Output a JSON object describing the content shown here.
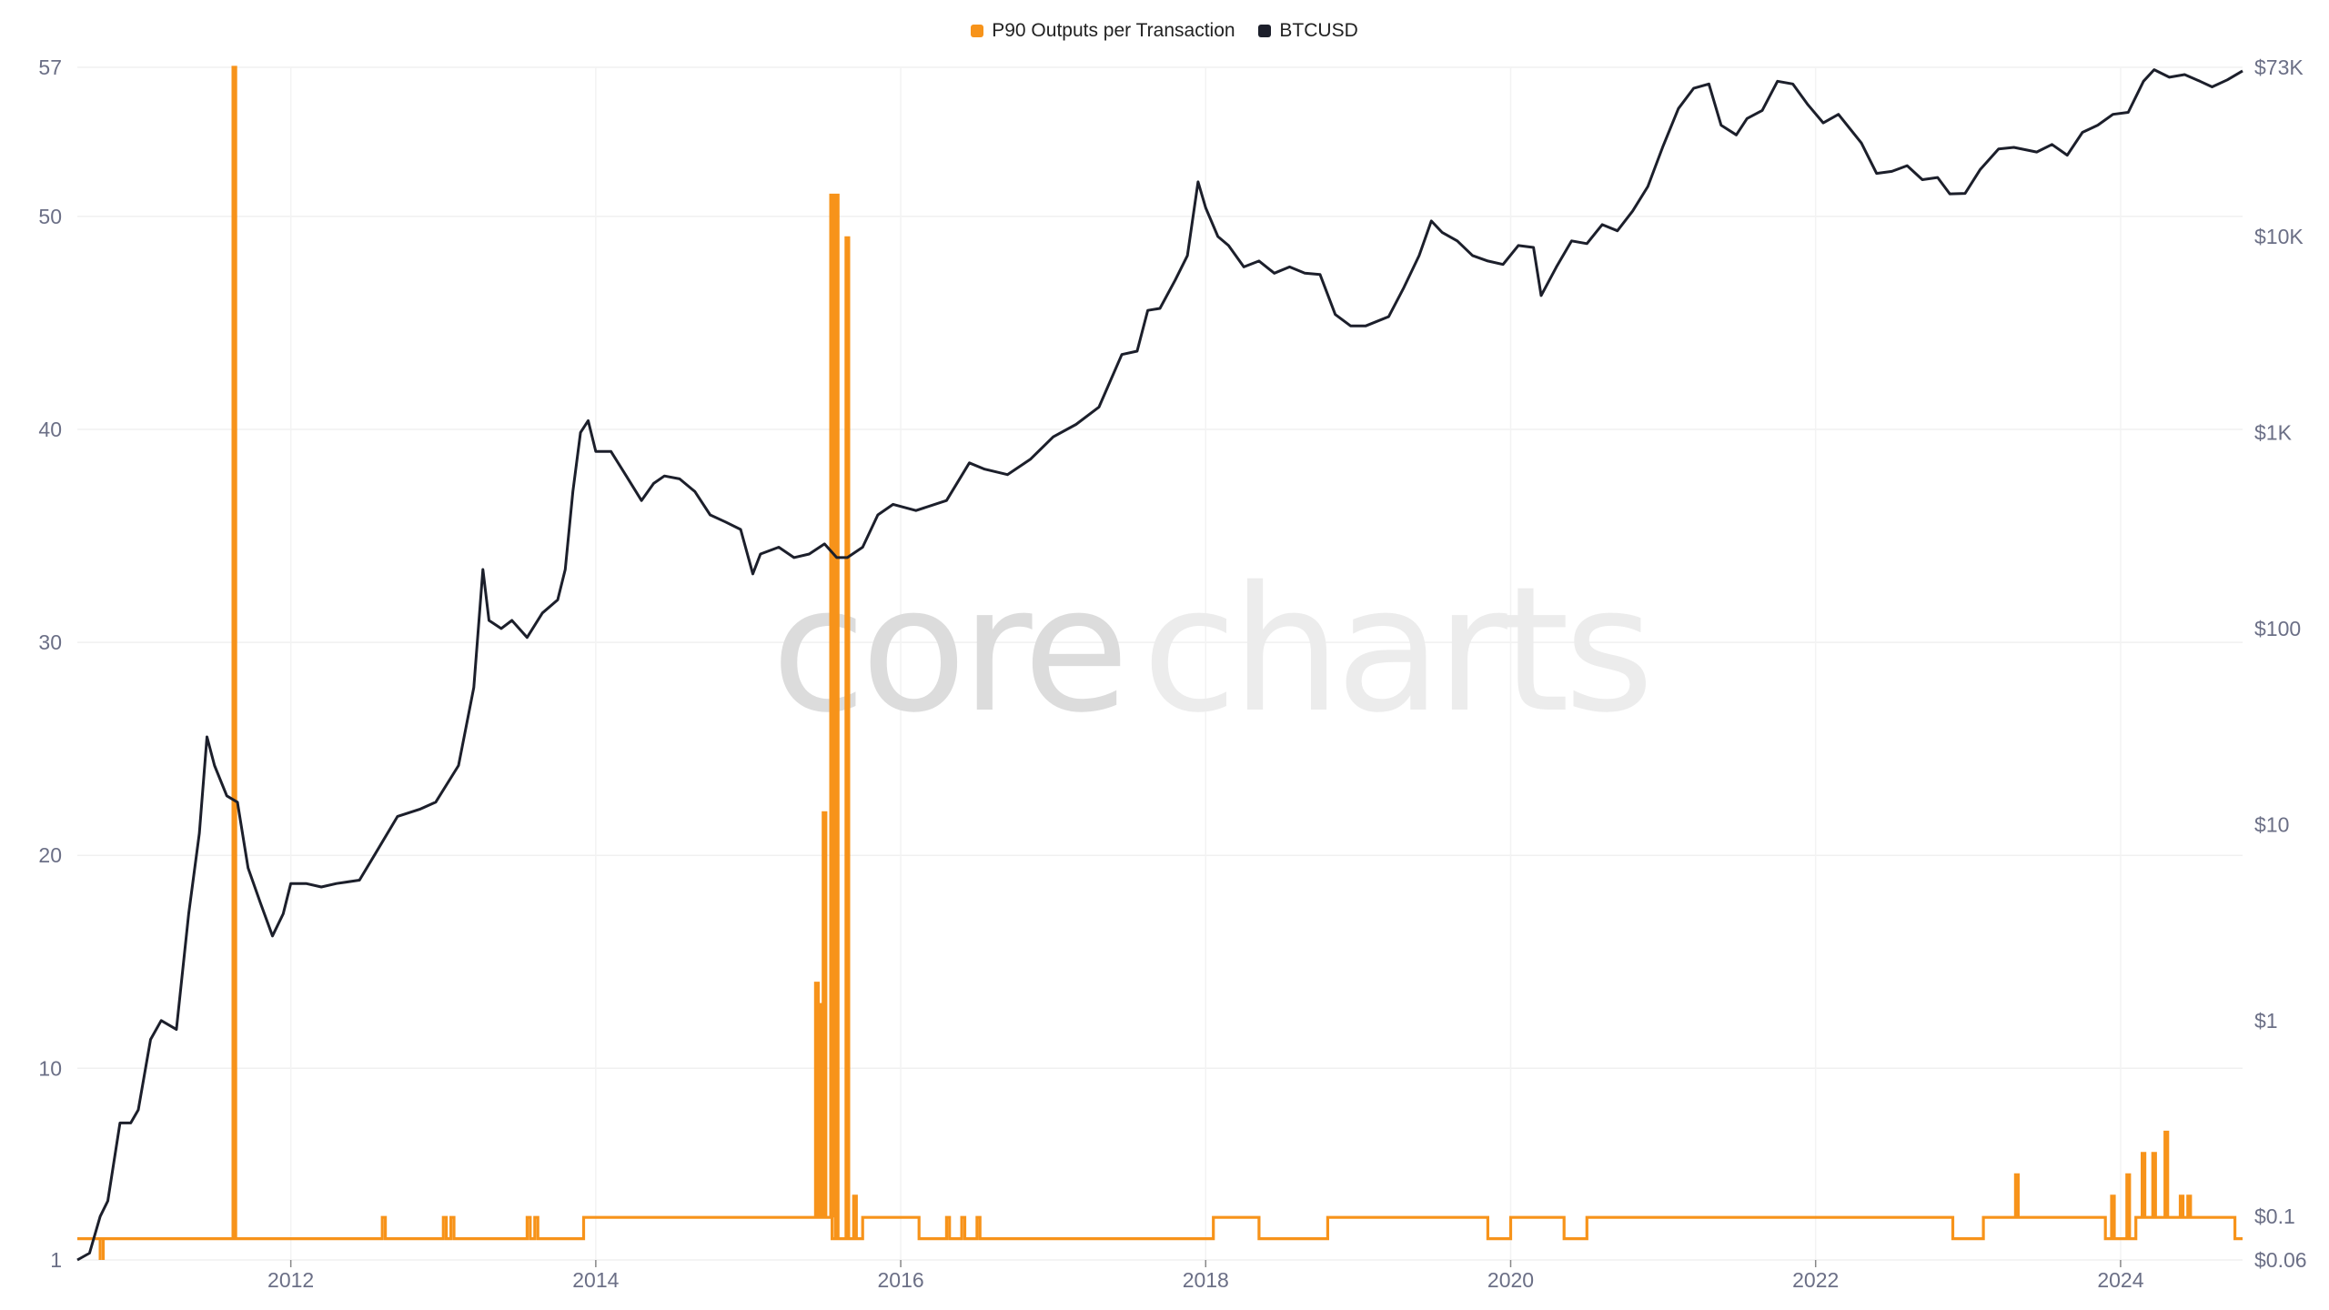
{
  "legend": [
    {
      "label": "P90 Outputs per Transaction",
      "color": "#f7931a"
    },
    {
      "label": "BTCUSD",
      "color": "#1c1f2b"
    }
  ],
  "watermark": {
    "part1": "core",
    "part2": "charts"
  },
  "chart_data": {
    "type": "line",
    "x_range": [
      2010.6,
      2024.8
    ],
    "left_axis": {
      "ticks": [
        1,
        10,
        20,
        30,
        40,
        50,
        57
      ],
      "range": [
        1,
        57
      ]
    },
    "right_axis": {
      "scale": "log",
      "ticks": [
        {
          "label": "$0.06",
          "value": 0.06
        },
        {
          "label": "$0.1",
          "value": 0.1
        },
        {
          "label": "$1",
          "value": 1
        },
        {
          "label": "$10",
          "value": 10
        },
        {
          "label": "$100",
          "value": 100
        },
        {
          "label": "$1K",
          "value": 1000
        },
        {
          "label": "$10K",
          "value": 10000
        },
        {
          "label": "$73K",
          "value": 73000
        }
      ],
      "range": [
        0.06,
        73000
      ]
    },
    "x_ticks": [
      "2012",
      "2014",
      "2016",
      "2018",
      "2020",
      "2022",
      "2024"
    ],
    "series": [
      {
        "name": "BTCUSD",
        "color": "#1c1f2b",
        "axis": "right",
        "points": [
          [
            2010.6,
            0.06
          ],
          [
            2010.68,
            0.065
          ],
          [
            2010.75,
            0.1
          ],
          [
            2010.8,
            0.12
          ],
          [
            2010.88,
            0.3
          ],
          [
            2010.95,
            0.3
          ],
          [
            2011.0,
            0.35
          ],
          [
            2011.08,
            0.8
          ],
          [
            2011.15,
            1.0
          ],
          [
            2011.25,
            0.9
          ],
          [
            2011.33,
            3.5
          ],
          [
            2011.4,
            9
          ],
          [
            2011.45,
            28
          ],
          [
            2011.5,
            20
          ],
          [
            2011.58,
            14
          ],
          [
            2011.65,
            13
          ],
          [
            2011.72,
            6
          ],
          [
            2011.8,
            4
          ],
          [
            2011.88,
            2.7
          ],
          [
            2011.95,
            3.5
          ],
          [
            2012.0,
            5
          ],
          [
            2012.1,
            5
          ],
          [
            2012.2,
            4.8
          ],
          [
            2012.3,
            5
          ],
          [
            2012.45,
            5.2
          ],
          [
            2012.55,
            7
          ],
          [
            2012.7,
            11
          ],
          [
            2012.85,
            12
          ],
          [
            2012.95,
            13
          ],
          [
            2013.1,
            20
          ],
          [
            2013.2,
            50
          ],
          [
            2013.26,
            200
          ],
          [
            2013.3,
            110
          ],
          [
            2013.38,
            100
          ],
          [
            2013.45,
            110
          ],
          [
            2013.55,
            90
          ],
          [
            2013.65,
            120
          ],
          [
            2013.75,
            140
          ],
          [
            2013.8,
            200
          ],
          [
            2013.85,
            500
          ],
          [
            2013.9,
            1000
          ],
          [
            2013.95,
            1150
          ],
          [
            2014.0,
            800
          ],
          [
            2014.1,
            800
          ],
          [
            2014.2,
            600
          ],
          [
            2014.3,
            450
          ],
          [
            2014.38,
            550
          ],
          [
            2014.45,
            600
          ],
          [
            2014.55,
            580
          ],
          [
            2014.65,
            500
          ],
          [
            2014.75,
            380
          ],
          [
            2014.85,
            350
          ],
          [
            2014.95,
            320
          ],
          [
            2015.03,
            190
          ],
          [
            2015.08,
            240
          ],
          [
            2015.2,
            260
          ],
          [
            2015.3,
            230
          ],
          [
            2015.4,
            240
          ],
          [
            2015.5,
            270
          ],
          [
            2015.58,
            230
          ],
          [
            2015.65,
            230
          ],
          [
            2015.75,
            260
          ],
          [
            2015.85,
            380
          ],
          [
            2015.95,
            430
          ],
          [
            2016.1,
            400
          ],
          [
            2016.3,
            450
          ],
          [
            2016.45,
            700
          ],
          [
            2016.55,
            650
          ],
          [
            2016.7,
            610
          ],
          [
            2016.85,
            730
          ],
          [
            2017.0,
            950
          ],
          [
            2017.15,
            1100
          ],
          [
            2017.3,
            1350
          ],
          [
            2017.45,
            2500
          ],
          [
            2017.55,
            2600
          ],
          [
            2017.62,
            4200
          ],
          [
            2017.7,
            4300
          ],
          [
            2017.8,
            6000
          ],
          [
            2017.88,
            8000
          ],
          [
            2017.95,
            19000
          ],
          [
            2018.0,
            14000
          ],
          [
            2018.08,
            10000
          ],
          [
            2018.15,
            9000
          ],
          [
            2018.25,
            7000
          ],
          [
            2018.35,
            7500
          ],
          [
            2018.45,
            6500
          ],
          [
            2018.55,
            7000
          ],
          [
            2018.65,
            6500
          ],
          [
            2018.75,
            6400
          ],
          [
            2018.85,
            4000
          ],
          [
            2018.95,
            3500
          ],
          [
            2019.05,
            3500
          ],
          [
            2019.2,
            3900
          ],
          [
            2019.3,
            5500
          ],
          [
            2019.4,
            8000
          ],
          [
            2019.48,
            12000
          ],
          [
            2019.55,
            10500
          ],
          [
            2019.65,
            9500
          ],
          [
            2019.75,
            8000
          ],
          [
            2019.85,
            7500
          ],
          [
            2019.95,
            7200
          ],
          [
            2020.05,
            9000
          ],
          [
            2020.15,
            8800
          ],
          [
            2020.2,
            5000
          ],
          [
            2020.3,
            7000
          ],
          [
            2020.4,
            9500
          ],
          [
            2020.5,
            9200
          ],
          [
            2020.6,
            11500
          ],
          [
            2020.7,
            10700
          ],
          [
            2020.8,
            13500
          ],
          [
            2020.9,
            18000
          ],
          [
            2021.0,
            29000
          ],
          [
            2021.1,
            45000
          ],
          [
            2021.2,
            57000
          ],
          [
            2021.3,
            60000
          ],
          [
            2021.38,
            37000
          ],
          [
            2021.48,
            33000
          ],
          [
            2021.55,
            40000
          ],
          [
            2021.65,
            44000
          ],
          [
            2021.75,
            62000
          ],
          [
            2021.85,
            60000
          ],
          [
            2021.95,
            47000
          ],
          [
            2022.05,
            38000
          ],
          [
            2022.15,
            42000
          ],
          [
            2022.3,
            30000
          ],
          [
            2022.4,
            21000
          ],
          [
            2022.5,
            21500
          ],
          [
            2022.6,
            23000
          ],
          [
            2022.7,
            19500
          ],
          [
            2022.8,
            20000
          ],
          [
            2022.88,
            16500
          ],
          [
            2022.98,
            16600
          ],
          [
            2023.08,
            22000
          ],
          [
            2023.2,
            28000
          ],
          [
            2023.3,
            28500
          ],
          [
            2023.45,
            27000
          ],
          [
            2023.55,
            29500
          ],
          [
            2023.65,
            26000
          ],
          [
            2023.75,
            34000
          ],
          [
            2023.85,
            37000
          ],
          [
            2023.95,
            42000
          ],
          [
            2024.05,
            43000
          ],
          [
            2024.15,
            62000
          ],
          [
            2024.22,
            71000
          ],
          [
            2024.32,
            65000
          ],
          [
            2024.42,
            67000
          ],
          [
            2024.52,
            62000
          ],
          [
            2024.6,
            58000
          ],
          [
            2024.7,
            63000
          ],
          [
            2024.8,
            70000
          ]
        ]
      },
      {
        "name": "P90 Outputs per Transaction",
        "color": "#f7931a",
        "axis": "left",
        "baseline": 2,
        "secondary_level": 3,
        "low_dips": [
          [
            2010.75,
            0
          ],
          [
            2010.77,
            0
          ]
        ],
        "level3_ranges": [
          [
            2012.6,
            2012.62
          ],
          [
            2013.0,
            2013.02
          ],
          [
            2013.05,
            2013.07
          ],
          [
            2013.55,
            2013.57
          ],
          [
            2013.6,
            2013.62
          ],
          [
            2013.92,
            2015.55
          ],
          [
            2015.75,
            2016.12
          ],
          [
            2016.3,
            2016.32
          ],
          [
            2016.4,
            2016.42
          ],
          [
            2016.5,
            2016.52
          ],
          [
            2018.05,
            2018.35
          ],
          [
            2018.8,
            2019.85
          ],
          [
            2020.0,
            2020.35
          ],
          [
            2020.5,
            2022.9
          ],
          [
            2023.1,
            2023.9
          ],
          [
            2024.1,
            2024.75
          ]
        ],
        "spikes": [
          [
            2011.63,
            57
          ],
          [
            2015.45,
            14
          ],
          [
            2015.47,
            13
          ],
          [
            2015.5,
            22
          ],
          [
            2015.55,
            51
          ],
          [
            2015.58,
            51
          ],
          [
            2015.65,
            49
          ],
          [
            2015.7,
            4
          ],
          [
            2023.32,
            5
          ],
          [
            2023.95,
            4
          ],
          [
            2024.05,
            5
          ],
          [
            2024.15,
            6
          ],
          [
            2024.22,
            6
          ],
          [
            2024.3,
            7
          ],
          [
            2024.4,
            4
          ],
          [
            2024.45,
            4
          ]
        ]
      }
    ]
  }
}
